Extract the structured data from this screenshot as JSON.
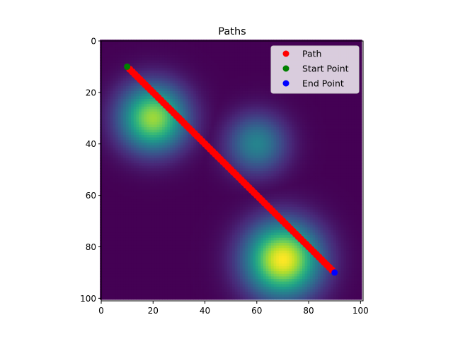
{
  "chart_data": {
    "type": "scatter",
    "title": "Paths",
    "xlabel": "",
    "ylabel": "",
    "xlim": [
      0,
      101
    ],
    "ylim": [
      101,
      0
    ],
    "y_inverted": true,
    "x_ticks": [
      0,
      20,
      40,
      60,
      80,
      100
    ],
    "y_ticks": [
      0,
      20,
      40,
      60,
      80,
      100
    ],
    "grid": false,
    "legend_position": "top-right",
    "background": {
      "type": "heatmap",
      "colormap": "viridis",
      "grid_size": 101,
      "peaks": [
        {
          "x": 20,
          "y": 30,
          "amplitude": 0.85,
          "sigma": 9
        },
        {
          "x": 60,
          "y": 40,
          "amplitude": 0.45,
          "sigma": 8
        },
        {
          "x": 70,
          "y": 85,
          "amplitude": 1.0,
          "sigma": 10
        }
      ]
    },
    "series": [
      {
        "name": "Path",
        "color": "#ff0000",
        "marker": "circle",
        "path_from": [
          11,
          11
        ],
        "path_to": [
          89,
          89
        ],
        "point_count": 79
      },
      {
        "name": "Start Point",
        "color": "#008000",
        "marker": "circle",
        "points": [
          [
            10,
            10
          ]
        ]
      },
      {
        "name": "End Point",
        "color": "#0000ff",
        "marker": "circle",
        "points": [
          [
            90,
            90
          ]
        ]
      }
    ]
  }
}
